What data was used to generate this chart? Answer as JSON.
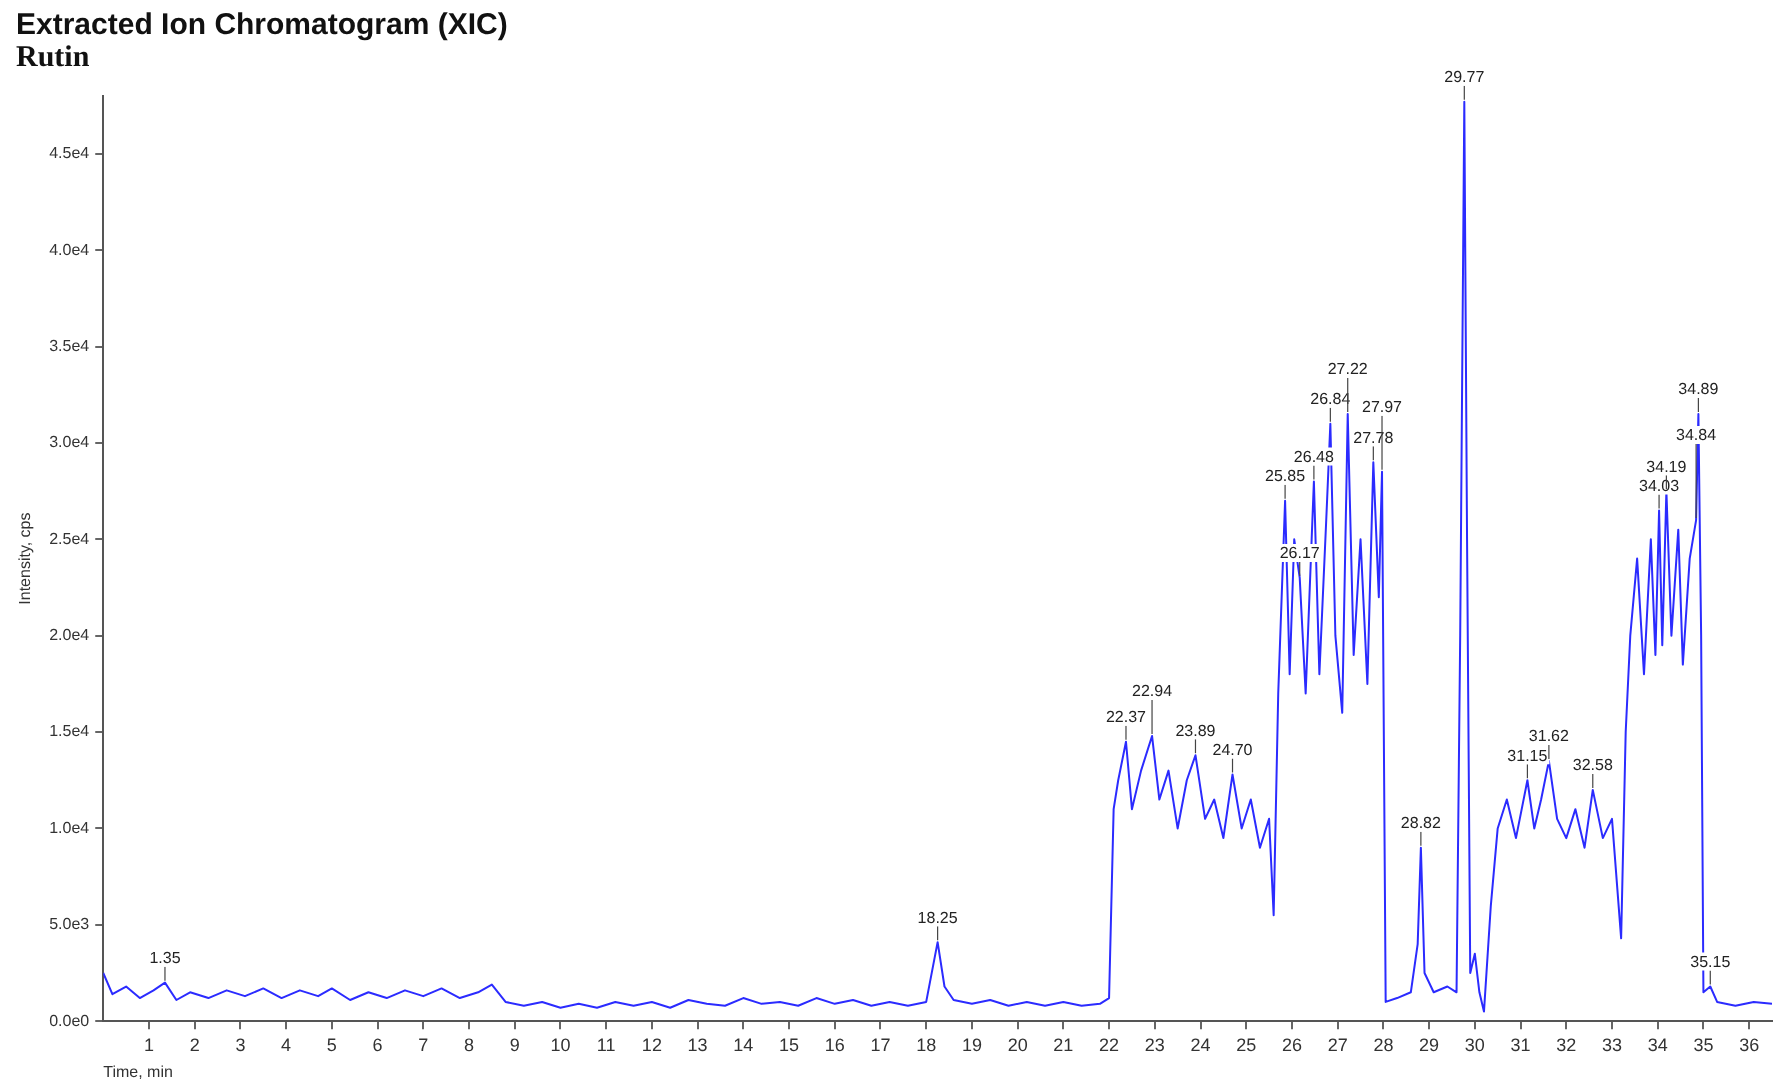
{
  "chart_data": {
    "type": "line",
    "title": "Extracted Ion Chromatogram (XIC)",
    "subtitle": "Rutin",
    "xlabel": "Time, min",
    "ylabel": "Intensity, cps",
    "xlim": [
      0,
      36.5
    ],
    "xticks": [
      1,
      2,
      3,
      4,
      5,
      6,
      7,
      8,
      9,
      10,
      11,
      12,
      13,
      14,
      15,
      16,
      17,
      18,
      19,
      20,
      21,
      22,
      23,
      24,
      25,
      26,
      27,
      28,
      29,
      30,
      31,
      32,
      33,
      34,
      35,
      36
    ],
    "ylim": [
      0,
      48000
    ],
    "yticks": [
      {
        "value": 0,
        "label": "0.0e0"
      },
      {
        "value": 5000,
        "label": "5.0e3"
      },
      {
        "value": 10000,
        "label": "1.0e4"
      },
      {
        "value": 15000,
        "label": "1.5e4"
      },
      {
        "value": 20000,
        "label": "2.0e4"
      },
      {
        "value": 25000,
        "label": "2.5e4"
      },
      {
        "value": 30000,
        "label": "3.0e4"
      },
      {
        "value": 35000,
        "label": "3.5e4"
      },
      {
        "value": 40000,
        "label": "4.0e4"
      },
      {
        "value": 45000,
        "label": "4.5e4"
      }
    ],
    "grid": false,
    "legend": false,
    "marker": "none",
    "line_style": "solid",
    "series": [
      {
        "color": "#2b2bff",
        "x": [
          0,
          0.2,
          0.5,
          0.8,
          1.1,
          1.35,
          1.6,
          1.9,
          2.3,
          2.7,
          3.1,
          3.5,
          3.9,
          4.3,
          4.7,
          5.0,
          5.4,
          5.8,
          6.2,
          6.6,
          7.0,
          7.4,
          7.8,
          8.2,
          8.5,
          8.8,
          9.2,
          9.6,
          10.0,
          10.4,
          10.8,
          11.2,
          11.6,
          12.0,
          12.4,
          12.8,
          13.2,
          13.6,
          14.0,
          14.4,
          14.8,
          15.2,
          15.6,
          16.0,
          16.4,
          16.8,
          17.2,
          17.6,
          18.0,
          18.25,
          18.4,
          18.6,
          19.0,
          19.4,
          19.8,
          20.2,
          20.6,
          21.0,
          21.4,
          21.8,
          22.0,
          22.1,
          22.2,
          22.37,
          22.5,
          22.7,
          22.94,
          23.1,
          23.3,
          23.5,
          23.7,
          23.89,
          24.1,
          24.3,
          24.5,
          24.7,
          24.9,
          25.1,
          25.3,
          25.5,
          25.6,
          25.7,
          25.85,
          25.95,
          26.05,
          26.17,
          26.3,
          26.48,
          26.6,
          26.75,
          26.84,
          26.95,
          27.1,
          27.22,
          27.35,
          27.5,
          27.65,
          27.78,
          27.9,
          27.97,
          28.05,
          28.3,
          28.6,
          28.75,
          28.82,
          28.9,
          29.1,
          29.4,
          29.6,
          29.68,
          29.77,
          29.83,
          29.9,
          30.0,
          30.1,
          30.2,
          30.35,
          30.5,
          30.7,
          30.9,
          31.15,
          31.3,
          31.45,
          31.62,
          31.8,
          32.0,
          32.2,
          32.4,
          32.58,
          32.8,
          33.0,
          33.2,
          33.3,
          33.4,
          33.55,
          33.7,
          33.85,
          33.95,
          34.03,
          34.1,
          34.19,
          34.3,
          34.45,
          34.55,
          34.7,
          34.84,
          34.89,
          34.95,
          35.0,
          35.15,
          35.3,
          35.7,
          36.1,
          36.5
        ],
        "values": [
          2500,
          1400,
          1800,
          1200,
          1600,
          2000,
          1100,
          1500,
          1200,
          1600,
          1300,
          1700,
          1200,
          1600,
          1300,
          1700,
          1100,
          1500,
          1200,
          1600,
          1300,
          1700,
          1200,
          1500,
          1900,
          1000,
          800,
          1000,
          700,
          900,
          700,
          1000,
          800,
          1000,
          700,
          1100,
          900,
          800,
          1200,
          900,
          1000,
          800,
          1200,
          900,
          1100,
          800,
          1000,
          800,
          1000,
          4100,
          1800,
          1100,
          900,
          1100,
          800,
          1000,
          800,
          1000,
          800,
          900,
          1200,
          11000,
          12500,
          14500,
          11000,
          13000,
          14800,
          11500,
          13000,
          10000,
          12500,
          13800,
          10500,
          11500,
          9500,
          12800,
          10000,
          11500,
          9000,
          10500,
          5500,
          17000,
          27000,
          18000,
          25000,
          23000,
          17000,
          28000,
          18000,
          26000,
          31000,
          20000,
          16000,
          31500,
          19000,
          25000,
          17500,
          29000,
          22000,
          28500,
          1000,
          1200,
          1500,
          4000,
          9000,
          2500,
          1500,
          1800,
          1500,
          20000,
          47700,
          25000,
          2500,
          3500,
          1500,
          500,
          6000,
          10000,
          11500,
          9500,
          12500,
          10000,
          11500,
          13500,
          10500,
          9500,
          11000,
          9000,
          12000,
          9500,
          10500,
          4300,
          15000,
          20000,
          24000,
          18000,
          25000,
          19000,
          26500,
          19500,
          27500,
          20000,
          25500,
          18500,
          24000,
          26000,
          31500,
          20000,
          1500,
          1800,
          1000,
          800,
          1000,
          900
        ]
      }
    ],
    "annotations": [
      {
        "text": "1.35",
        "x": 1.35,
        "y": 2000
      },
      {
        "text": "18.25",
        "x": 18.25,
        "y": 4100
      },
      {
        "text": "22.37",
        "x": 22.37,
        "y": 14500
      },
      {
        "text": "22.94",
        "x": 22.94,
        "y": 14800
      },
      {
        "text": "23.89",
        "x": 23.89,
        "y": 13800
      },
      {
        "text": "24.70",
        "x": 24.7,
        "y": 12800
      },
      {
        "text": "25.85",
        "x": 25.85,
        "y": 27000
      },
      {
        "text": "26.17",
        "x": 26.17,
        "y": 23000
      },
      {
        "text": "26.48",
        "x": 26.48,
        "y": 28000
      },
      {
        "text": "26.84",
        "x": 26.84,
        "y": 31000
      },
      {
        "text": "27.22",
        "x": 27.22,
        "y": 31500
      },
      {
        "text": "27.78",
        "x": 27.78,
        "y": 29000
      },
      {
        "text": "27.97",
        "x": 27.97,
        "y": 28500
      },
      {
        "text": "28.82",
        "x": 28.82,
        "y": 9000
      },
      {
        "text": "29.77",
        "x": 29.77,
        "y": 47700
      },
      {
        "text": "31.15",
        "x": 31.15,
        "y": 12500
      },
      {
        "text": "31.62",
        "x": 31.62,
        "y": 13500
      },
      {
        "text": "32.58",
        "x": 32.58,
        "y": 12000
      },
      {
        "text": "34.03",
        "x": 34.03,
        "y": 26500
      },
      {
        "text": "34.19",
        "x": 34.19,
        "y": 27500
      },
      {
        "text": "34.84",
        "x": 34.84,
        "y": 26000
      },
      {
        "text": "34.89",
        "x": 34.89,
        "y": 31500
      },
      {
        "text": "35.15",
        "x": 35.15,
        "y": 1800
      }
    ]
  }
}
